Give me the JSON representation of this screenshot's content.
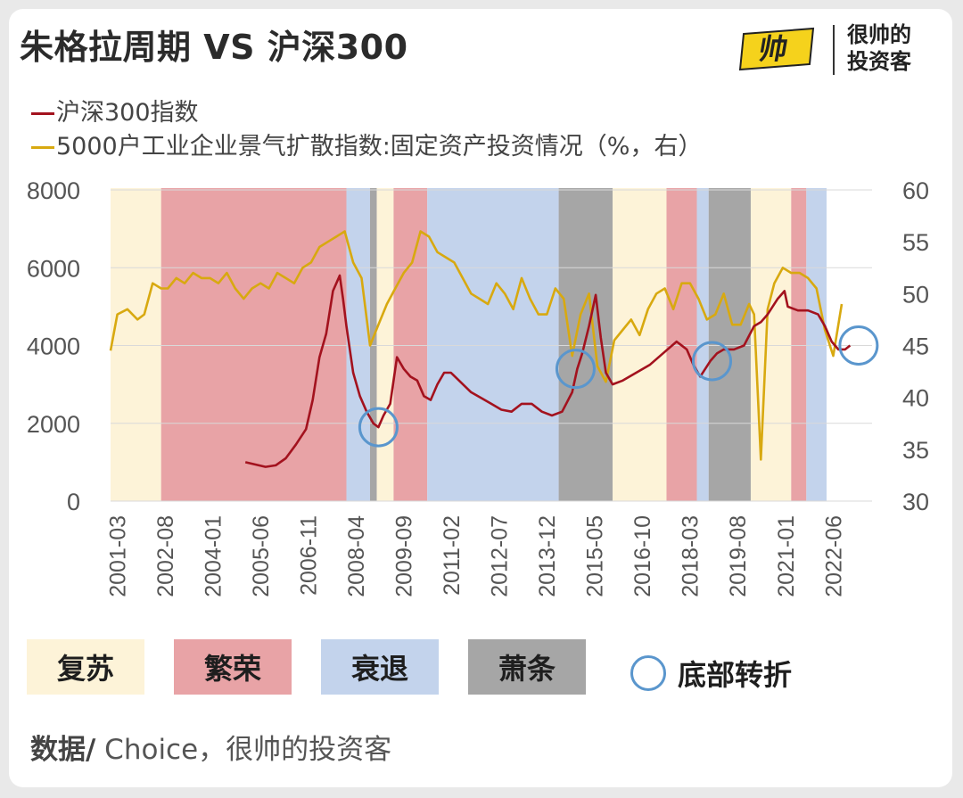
{
  "title": "朱格拉周期 VS 沪深300",
  "logo": {
    "mark": "帅",
    "line1": "很帅的",
    "line2": "投资客"
  },
  "legend": {
    "series1": "沪深300指数",
    "series2": "5000户工业企业景气扩散指数:固定资产投资情况（%，右）"
  },
  "phases": {
    "recovery": "复苏",
    "prosperity": "繁荣",
    "recession": "衰退",
    "depression": "萧条",
    "bottom": "底部转折"
  },
  "source": {
    "label": "数据/",
    "text": " Choice，很帅的投资客"
  },
  "colors": {
    "recovery": "#fdf3d8",
    "prosperity": "#e8a3a6",
    "recession": "#c3d3ec",
    "depression": "#a6a6a6",
    "series1": "#a3121e",
    "series2": "#d8a910",
    "circle": "#5a96cd"
  },
  "chart_data": {
    "type": "line",
    "x_ticks": [
      "2001-03",
      "2002-08",
      "2004-01",
      "2005-06",
      "2006-11",
      "2008-04",
      "2009-09",
      "2011-02",
      "2012-07",
      "2013-12",
      "2015-05",
      "2016-10",
      "2018-03",
      "2019-08",
      "2021-01",
      "2022-06"
    ],
    "y_left": {
      "ticks": [
        0,
        2000,
        4000,
        6000,
        8000
      ],
      "range": [
        0,
        8000
      ]
    },
    "y_right": {
      "ticks": [
        30,
        35,
        40,
        45,
        50,
        55,
        60
      ],
      "range": [
        30,
        60
      ]
    },
    "phase_bands": [
      {
        "phase": "recovery",
        "start": 2001.0,
        "end": 2002.5
      },
      {
        "phase": "prosperity",
        "start": 2002.5,
        "end": 2008.0
      },
      {
        "phase": "recession",
        "start": 2008.0,
        "end": 2008.7
      },
      {
        "phase": "depression",
        "start": 2008.7,
        "end": 2008.9
      },
      {
        "phase": "recovery",
        "start": 2008.9,
        "end": 2009.4
      },
      {
        "phase": "prosperity",
        "start": 2009.4,
        "end": 2010.4
      },
      {
        "phase": "recession",
        "start": 2010.4,
        "end": 2014.3
      },
      {
        "phase": "depression",
        "start": 2014.3,
        "end": 2015.9
      },
      {
        "phase": "recovery",
        "start": 2015.9,
        "end": 2017.5
      },
      {
        "phase": "prosperity",
        "start": 2017.5,
        "end": 2018.4
      },
      {
        "phase": "recession",
        "start": 2018.4,
        "end": 2018.75
      },
      {
        "phase": "depression",
        "start": 2018.75,
        "end": 2020.0
      },
      {
        "phase": "recovery",
        "start": 2020.0,
        "end": 2021.2
      },
      {
        "phase": "prosperity",
        "start": 2021.2,
        "end": 2021.65
      },
      {
        "phase": "recession",
        "start": 2021.65,
        "end": 2022.25
      }
    ],
    "series": [
      {
        "name": "沪深300指数",
        "axis": "left",
        "x": [
          2005.0,
          2005.3,
          2005.6,
          2005.9,
          2006.2,
          2006.5,
          2006.8,
          2007.0,
          2007.2,
          2007.4,
          2007.6,
          2007.8,
          2007.9,
          2008.0,
          2008.2,
          2008.4,
          2008.6,
          2008.8,
          2008.95,
          2009.1,
          2009.3,
          2009.5,
          2009.7,
          2009.9,
          2010.1,
          2010.3,
          2010.5,
          2010.7,
          2010.9,
          2011.1,
          2011.4,
          2011.7,
          2012.0,
          2012.3,
          2012.6,
          2012.9,
          2013.2,
          2013.5,
          2013.8,
          2014.1,
          2014.4,
          2014.7,
          2014.85,
          2015.0,
          2015.2,
          2015.4,
          2015.55,
          2015.7,
          2015.9,
          2016.2,
          2016.6,
          2017.0,
          2017.4,
          2017.8,
          2018.1,
          2018.3,
          2018.5,
          2018.8,
          2019.0,
          2019.2,
          2019.5,
          2019.8,
          2020.1,
          2020.3,
          2020.5,
          2020.8,
          2021.0,
          2021.1,
          2021.4,
          2021.7,
          2022.0,
          2022.2,
          2022.4,
          2022.6,
          2022.8,
          2022.95
        ],
        "y": [
          1000,
          940,
          880,
          920,
          1100,
          1450,
          1850,
          2600,
          3700,
          4300,
          5400,
          5800,
          5200,
          4500,
          3300,
          2700,
          2300,
          2000,
          1900,
          2200,
          2500,
          3700,
          3400,
          3200,
          3100,
          2700,
          2600,
          3000,
          3300,
          3300,
          3050,
          2800,
          2650,
          2500,
          2350,
          2300,
          2500,
          2500,
          2300,
          2200,
          2300,
          2800,
          3400,
          3800,
          4500,
          5300,
          4200,
          3300,
          3000,
          3100,
          3300,
          3500,
          3800,
          4100,
          3900,
          3500,
          3200,
          3600,
          3800,
          3900,
          3900,
          4000,
          4500,
          4600,
          4800,
          5200,
          5400,
          5000,
          4900,
          4900,
          4800,
          4500,
          4100,
          3900,
          3900,
          4000
        ]
      },
      {
        "name": "5000户工业企业景气扩散指数:固定资产投资情况（%，右）",
        "axis": "right",
        "x": [
          2001.0,
          2001.2,
          2001.5,
          2001.8,
          2002.0,
          2002.25,
          2002.5,
          2002.7,
          2002.95,
          2003.2,
          2003.45,
          2003.7,
          2003.95,
          2004.2,
          2004.45,
          2004.7,
          2004.95,
          2005.2,
          2005.45,
          2005.7,
          2005.95,
          2006.2,
          2006.45,
          2006.7,
          2006.95,
          2007.2,
          2007.45,
          2007.7,
          2007.95,
          2008.2,
          2008.45,
          2008.7,
          2008.95,
          2009.2,
          2009.45,
          2009.7,
          2009.95,
          2010.2,
          2010.45,
          2010.7,
          2010.95,
          2011.2,
          2011.45,
          2011.7,
          2011.95,
          2012.2,
          2012.45,
          2012.7,
          2012.95,
          2013.2,
          2013.45,
          2013.7,
          2013.95,
          2014.2,
          2014.45,
          2014.7,
          2014.95,
          2015.2,
          2015.45,
          2015.7,
          2015.95,
          2016.2,
          2016.45,
          2016.7,
          2016.95,
          2017.2,
          2017.45,
          2017.7,
          2017.95,
          2018.2,
          2018.45,
          2018.7,
          2018.95,
          2019.2,
          2019.45,
          2019.7,
          2019.95,
          2020.1,
          2020.3,
          2020.5,
          2020.7,
          2020.95,
          2021.2,
          2021.45,
          2021.7,
          2021.95,
          2022.2,
          2022.45,
          2022.7
        ],
        "y": [
          44.5,
          48,
          48.5,
          47.5,
          48,
          51,
          50.5,
          50.5,
          51.5,
          51,
          52,
          51.5,
          51.5,
          51,
          52,
          50.5,
          49.5,
          50.5,
          51,
          50.5,
          52,
          51.5,
          51,
          52.5,
          53,
          54.5,
          55,
          55.5,
          56,
          53,
          51.5,
          45,
          47,
          49,
          50.5,
          52,
          53,
          56,
          55.5,
          54,
          53.5,
          53,
          51.5,
          50,
          49.5,
          49,
          51,
          50,
          48.5,
          51.5,
          49.5,
          48,
          48,
          50.5,
          49.5,
          44,
          48,
          50,
          43,
          41.5,
          45.5,
          46.5,
          47.5,
          46,
          48.5,
          50,
          50.5,
          48.5,
          51,
          51,
          49.5,
          47.5,
          48,
          50,
          47,
          47,
          49,
          48,
          34,
          48.5,
          51,
          52.5,
          52,
          52,
          51.5,
          50.5,
          46.5,
          44,
          49
        ]
      }
    ],
    "bottom_turns": [
      2008.95,
      2014.8,
      2018.85,
      2023.2
    ]
  }
}
